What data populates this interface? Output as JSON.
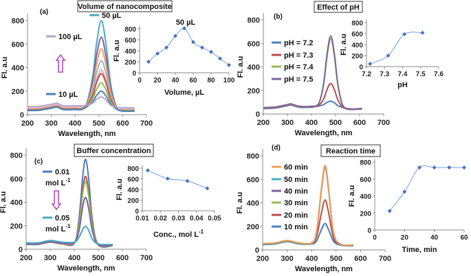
{
  "chart_data": [
    {
      "panel": "(a)",
      "title": "Volume of nanocomposite",
      "type": "line",
      "xlabel": "Wavelength, nm",
      "ylabel": "Fl. a.u",
      "xlim": [
        200,
        700
      ],
      "ylim": [
        0,
        800
      ],
      "xticks": [
        "200",
        "300",
        "400",
        "500",
        "600",
        "700"
      ],
      "yticks": [
        "0",
        "200",
        "400",
        "600",
        "800"
      ],
      "x": [
        200,
        250,
        300,
        325,
        350,
        400,
        425,
        450,
        475,
        490,
        510,
        530,
        550,
        575,
        600,
        650
      ],
      "series": [
        {
          "name": "50 µL",
          "color": "#46aac5",
          "values": [
            45,
            47,
            65,
            73,
            53,
            53,
            53,
            104,
            341,
            600,
            800,
            598,
            255,
            64,
            40,
            40
          ]
        },
        {
          "name": "",
          "color": "#7d60a0",
          "values": [
            48,
            50,
            68,
            76,
            56,
            56,
            56,
            96,
            288,
            498,
            660,
            495,
            216,
            60,
            42,
            42
          ]
        },
        {
          "name": "",
          "color": "#f59d56",
          "values": [
            40,
            42,
            60,
            68,
            48,
            48,
            48,
            90,
            250,
            425,
            560,
            422,
            188,
            57,
            38,
            38
          ]
        },
        {
          "name": "",
          "color": "#95b3d7",
          "values": [
            52,
            54,
            72,
            80,
            60,
            60,
            60,
            84,
            212,
            352,
            460,
            349,
            160,
            54,
            44,
            44
          ]
        },
        {
          "name": "",
          "color": "#e6b0ae",
          "values": [
            55,
            57,
            75,
            83,
            63,
            63,
            63,
            79,
            182,
            294,
            380,
            291,
            138,
            51,
            46,
            46
          ]
        },
        {
          "name": "",
          "color": "#be4b48",
          "values": [
            42,
            44,
            62,
            70,
            50,
            50,
            50,
            77,
            170,
            272,
            350,
            269,
            130,
            50,
            36,
            36
          ]
        },
        {
          "name": "",
          "color": "#98b954",
          "values": [
            38,
            40,
            58,
            66,
            46,
            46,
            46,
            73,
            140,
            213,
            270,
            210,
            108,
            48,
            34,
            34
          ]
        },
        {
          "name": "10 µL",
          "color": "#4a7ebb",
          "values": [
            35,
            37,
            55,
            63,
            43,
            43,
            43,
            68,
            113,
            162,
            200,
            159,
            89,
            46,
            30,
            30
          ]
        },
        {
          "name": "100 µL",
          "color": "#b3a2c7",
          "values": [
            68,
            70,
            88,
            96,
            76,
            76,
            76,
            80,
            100,
            130,
            150,
            126,
            80,
            62,
            58,
            58
          ]
        }
      ],
      "arrow": "up",
      "inset": {
        "type": "line",
        "xlabel": "Volume, µL",
        "ylabel": "Fl. a.u",
        "xlim": [
          0,
          100
        ],
        "ylim": [
          0,
          800
        ],
        "xticks": [
          "0",
          "20",
          "40",
          "60",
          "80",
          "100"
        ],
        "yticks": [
          "0",
          "200",
          "400",
          "600",
          "800"
        ],
        "x": [
          10,
          20,
          30,
          40,
          50,
          60,
          70,
          80,
          90,
          100
        ],
        "y": [
          200,
          350,
          460,
          670,
          810,
          560,
          460,
          380,
          260,
          140
        ],
        "annotation": "50 µL",
        "color": "#6fa0dc",
        "marker_color": "#4472c4"
      }
    },
    {
      "panel": "(b)",
      "title": "Effect of pH",
      "type": "line",
      "xlabel": "Wavelength, nm",
      "ylabel": "Fl. a.u",
      "xlim": [
        200,
        700
      ],
      "ylim": [
        0,
        800
      ],
      "xticks": [
        "200",
        "300",
        "400",
        "500",
        "600",
        "700"
      ],
      "yticks": [
        "0",
        "200",
        "400",
        "600",
        "800"
      ],
      "x": [
        200,
        250,
        300,
        315,
        350,
        400,
        430,
        450,
        465,
        480,
        495,
        510,
        530,
        560,
        610
      ],
      "series": [
        {
          "name": "pH = 7.2",
          "color": "#4a7ebb",
          "values": [
            45,
            50,
            70,
            75,
            57,
            57,
            67,
            79,
            99,
            110,
            95,
            70,
            55,
            38,
            42
          ]
        },
        {
          "name": "pH = 7.3",
          "color": "#be4b48",
          "values": [
            50,
            55,
            75,
            80,
            62,
            62,
            73,
            125,
            211,
            260,
            207,
            118,
            58,
            40,
            45
          ]
        },
        {
          "name": "pH = 7.4",
          "color": "#98b954",
          "values": [
            52,
            57,
            77,
            82,
            64,
            64,
            88,
            245,
            496,
            640,
            493,
            240,
            73,
            42,
            47
          ]
        },
        {
          "name": "pH = 7.5",
          "color": "#7d60a0",
          "values": [
            55,
            60,
            80,
            85,
            66,
            66,
            89,
            253,
            515,
            665,
            511,
            248,
            74,
            44,
            48
          ]
        }
      ],
      "inset": {
        "type": "line",
        "xlabel": "pH",
        "ylabel": "Fl. a.u",
        "xlim": [
          7.2,
          7.6
        ],
        "ylim": [
          0,
          800
        ],
        "xticks": [
          "7.2",
          "7.3",
          "7.4",
          "7.5",
          "7.6"
        ],
        "yticks": [
          "0",
          "200",
          "400",
          "600",
          "800"
        ],
        "x": [
          7.22,
          7.32,
          7.41,
          7.51
        ],
        "y": [
          50,
          200,
          590,
          615
        ],
        "color": "#6fa0dc",
        "marker_color": "#4472c4"
      }
    },
    {
      "panel": "(c)",
      "title": "Buffer concentration",
      "type": "line",
      "xlabel": "Wavelength, nm",
      "ylabel": "Fl. a.u",
      "xlim": [
        200,
        700
      ],
      "ylim": [
        0,
        800
      ],
      "xticks": [
        "200",
        "300",
        "400",
        "500",
        "600",
        "700"
      ],
      "yticks": [
        "0",
        "200",
        "400",
        "600",
        "800"
      ],
      "x": [
        200,
        250,
        300,
        350,
        400,
        420,
        435,
        447,
        460,
        475,
        500,
        560
      ],
      "series": [
        {
          "name": "0.01",
          "unit": "mol L",
          "unit_sup": "-1",
          "color": "#4a7ebb",
          "values": [
            40,
            40,
            60,
            45,
            50,
            265,
            622,
            765,
            597,
            253,
            36,
            30
          ]
        },
        {
          "name": "",
          "color": "#be4b48",
          "values": [
            42,
            42,
            62,
            47,
            52,
            218,
            507,
            620,
            484,
            210,
            36,
            32
          ]
        },
        {
          "name": "",
          "color": "#98b954",
          "values": [
            44,
            44,
            64,
            49,
            54,
            203,
            471,
            575,
            449,
            197,
            37,
            33
          ]
        },
        {
          "name": "",
          "color": "#7d60a0",
          "values": [
            46,
            46,
            66,
            51,
            56,
            160,
            363,
            440,
            345,
            157,
            38,
            34
          ]
        },
        {
          "name": "0.05",
          "unit": "mol L",
          "unit_sup": "-1",
          "color": "#46aac5",
          "values": [
            55,
            55,
            75,
            60,
            60,
            103,
            168,
            195,
            160,
            86,
            45,
            40
          ]
        }
      ],
      "arrow": "down",
      "inset": {
        "type": "line",
        "xlabel": "Conc., mol L",
        "xlabel_sup": "-1",
        "ylabel": "Fl. a.u",
        "xlim": [
          0.01,
          0.05
        ],
        "ylim": [
          0,
          800
        ],
        "xticks": [
          "0.01",
          "0.02",
          "0.03",
          "0.04",
          "0.05"
        ],
        "yticks": [
          "0",
          "200",
          "400",
          "600",
          "800"
        ],
        "x": [
          0.013,
          0.024,
          0.035,
          0.046
        ],
        "y": [
          760,
          605,
          560,
          420
        ],
        "color": "#6fa0dc",
        "marker_color": "#4472c4"
      }
    },
    {
      "panel": "(d)",
      "title": "Reaction time",
      "type": "line",
      "xlabel": "Wavelength, nm",
      "ylabel": "Fl. a.u",
      "xlim": [
        200,
        700
      ],
      "ylim": [
        0,
        800
      ],
      "xticks": [
        "200",
        "300",
        "400",
        "500",
        "600",
        "700"
      ],
      "yticks": [
        "0",
        "200",
        "400",
        "600",
        "800"
      ],
      "x": [
        200,
        250,
        300,
        350,
        400,
        420,
        440,
        455,
        470,
        490,
        520,
        570
      ],
      "series": [
        {
          "name": "10 min",
          "color": "#4a7ebb",
          "values": [
            45,
            50,
            70,
            50,
            50,
            76,
            172,
            225,
            170,
            72,
            40,
            35
          ]
        },
        {
          "name": "20 min",
          "color": "#be4b48",
          "values": [
            50,
            55,
            75,
            55,
            55,
            110,
            313,
            425,
            311,
            100,
            45,
            40
          ]
        },
        {
          "name": "30 min",
          "color": "#98b954",
          "values": [
            50,
            55,
            75,
            55,
            55,
            152,
            506,
            700,
            504,
            141,
            45,
            40
          ]
        },
        {
          "name": "40 min",
          "color": "#7d60a0",
          "values": [
            52,
            57,
            77,
            57,
            57,
            152,
            506,
            700,
            504,
            141,
            46,
            41
          ]
        },
        {
          "name": "50 min",
          "color": "#46aac5",
          "values": [
            53,
            58,
            78,
            58,
            58,
            153,
            509,
            705,
            507,
            142,
            47,
            42
          ]
        },
        {
          "name": "60 min",
          "color": "#f59d56",
          "values": [
            55,
            60,
            80,
            60,
            60,
            155,
            520,
            720,
            518,
            145,
            48,
            43
          ]
        }
      ],
      "inset": {
        "type": "line",
        "xlabel": "Time, min",
        "ylabel": "Fl. a.u",
        "xlim": [
          0,
          60
        ],
        "ylim": [
          0,
          800
        ],
        "xticks": [
          "0",
          "20",
          "40",
          "60"
        ],
        "yticks": [
          "0",
          "200",
          "400",
          "600",
          "800"
        ],
        "x": [
          10,
          20,
          30,
          40,
          50,
          60
        ],
        "y": [
          225,
          450,
          735,
          735,
          735,
          735
        ],
        "color": "#6fa0dc",
        "marker_color": "#4472c4"
      }
    }
  ]
}
